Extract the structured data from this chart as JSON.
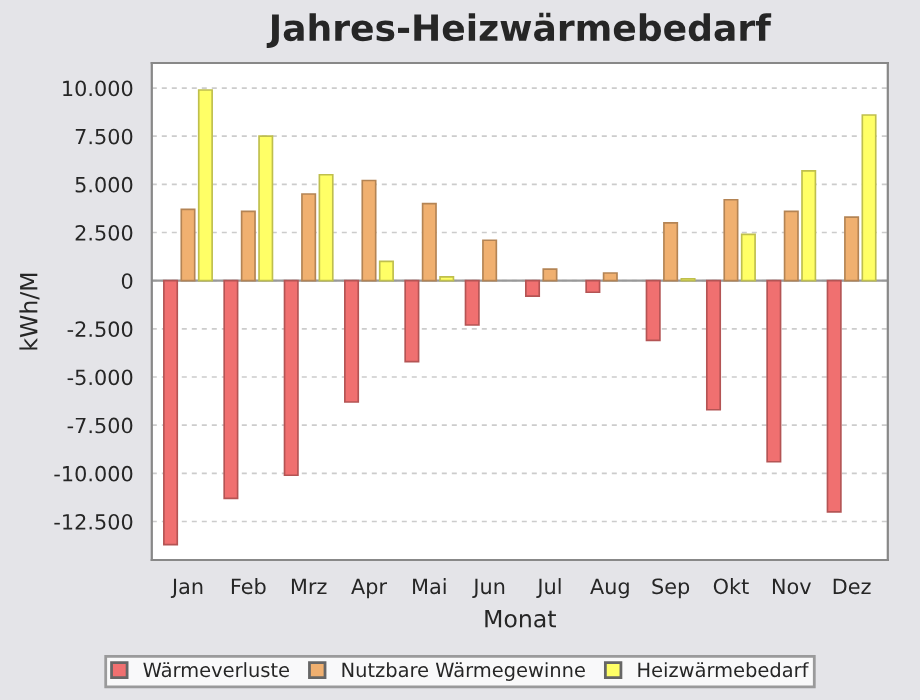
{
  "chart_data": {
    "type": "bar",
    "title": "Jahres-Heizwärmebedarf",
    "xlabel": "Monat",
    "ylabel": "kWh/M",
    "categories": [
      "Jan",
      "Feb",
      "Mrz",
      "Apr",
      "Mai",
      "Jun",
      "Jul",
      "Aug",
      "Sep",
      "Okt",
      "Nov",
      "Dez"
    ],
    "series": [
      {
        "name": "Wärmeverluste",
        "color": "#f07070",
        "values": [
          -13700,
          -11300,
          -10100,
          -6300,
          -4200,
          -2300,
          -800,
          -600,
          -3100,
          -6700,
          -9400,
          -12000
        ]
      },
      {
        "name": "Nutzbare Wärmegewinne",
        "color": "#f0b070",
        "values": [
          3700,
          3600,
          4500,
          5200,
          4000,
          2100,
          600,
          400,
          3000,
          4200,
          3600,
          3300
        ]
      },
      {
        "name": "Heizwärmebedarf",
        "color": "#ffff66",
        "values": [
          9900,
          7500,
          5500,
          1000,
          200,
          0,
          0,
          0,
          100,
          2400,
          5700,
          8600
        ]
      }
    ],
    "ylim": [
      -14500,
      11300
    ],
    "yticks": [
      {
        "value": -12500,
        "label": "-12.500"
      },
      {
        "value": -10000,
        "label": "-10.000"
      },
      {
        "value": -7500,
        "label": "-7.500"
      },
      {
        "value": -5000,
        "label": "-5.000"
      },
      {
        "value": -2500,
        "label": "-2.500"
      },
      0,
      {
        "value": 2500,
        "label": "2.500"
      },
      {
        "value": 5000,
        "label": "5.000"
      },
      {
        "value": 7500,
        "label": "7.500"
      },
      {
        "value": 10000,
        "label": "10.000"
      }
    ],
    "grid": "y",
    "legend": "bottom"
  }
}
